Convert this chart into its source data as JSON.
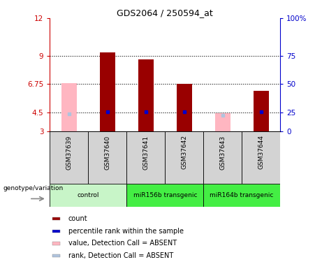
{
  "title": "GDS2064 / 250594_at",
  "samples": [
    "GSM37639",
    "GSM37640",
    "GSM37641",
    "GSM37642",
    "GSM37643",
    "GSM37644"
  ],
  "red_bar_values": [
    null,
    9.3,
    8.7,
    6.75,
    null,
    6.2
  ],
  "pink_bar_values": [
    6.8,
    null,
    null,
    null,
    4.4,
    null
  ],
  "blue_dot_values": [
    null,
    4.52,
    4.52,
    4.52,
    null,
    4.52
  ],
  "light_blue_values": [
    4.38,
    null,
    null,
    null,
    4.28,
    null
  ],
  "ymin": 3,
  "ymax": 12,
  "yticks_left": [
    3,
    4.5,
    6.75,
    9,
    12
  ],
  "ytick_labels_left": [
    "3",
    "4.5",
    "6.75",
    "9",
    "12"
  ],
  "ytick_labels_right": [
    "0",
    "25",
    "50",
    "75",
    "100%"
  ],
  "hlines": [
    4.5,
    6.75,
    9
  ],
  "group_colors": [
    "#c8f5c8",
    "#44ee44",
    "#44ee44"
  ],
  "group_labels": [
    "control",
    "miR156b transgenic",
    "miR164b transgenic"
  ],
  "group_ranges": [
    [
      0,
      2
    ],
    [
      2,
      4
    ],
    [
      4,
      6
    ]
  ],
  "sample_bg_color": "#d3d3d3",
  "left_axis_color": "#cc0000",
  "right_axis_color": "#0000cc",
  "red_bar_color": "#990000",
  "pink_bar_color": "#ffb6c1",
  "blue_dot_color": "#0000cc",
  "light_blue_color": "#b0c4de",
  "bar_width": 0.4,
  "genotype_label": "genotype/variation",
  "legend_items": [
    {
      "color": "#990000",
      "label": "count"
    },
    {
      "color": "#0000cc",
      "label": "percentile rank within the sample"
    },
    {
      "color": "#ffb6c1",
      "label": "value, Detection Call = ABSENT"
    },
    {
      "color": "#b0c4de",
      "label": "rank, Detection Call = ABSENT"
    }
  ]
}
